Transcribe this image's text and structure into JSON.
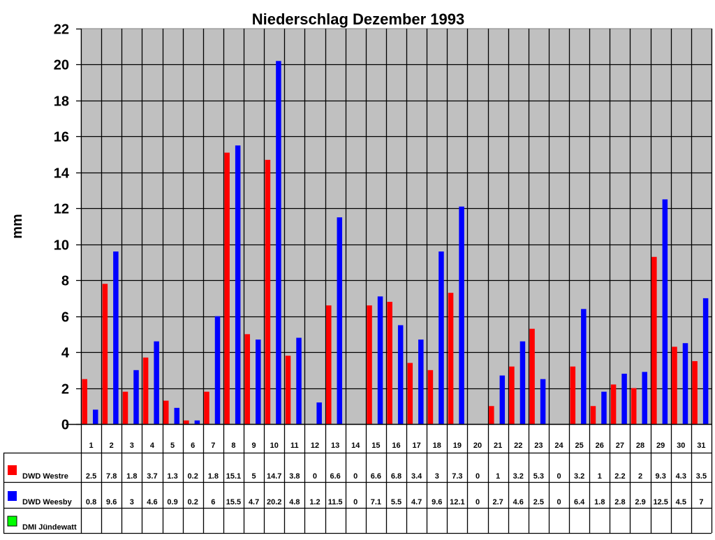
{
  "chart_data": {
    "type": "bar",
    "title": "Niederschlag Dezember 1993",
    "xlabel": "",
    "ylabel": "mm",
    "ylim": [
      0,
      22
    ],
    "yticks": [
      0,
      2,
      4,
      6,
      8,
      10,
      12,
      14,
      16,
      18,
      20,
      22
    ],
    "grid": true,
    "legend_position": "data-table-left",
    "categories": [
      "1",
      "2",
      "3",
      "4",
      "5",
      "6",
      "7",
      "8",
      "9",
      "10",
      "11",
      "12",
      "13",
      "14",
      "15",
      "16",
      "17",
      "18",
      "19",
      "20",
      "21",
      "22",
      "23",
      "24",
      "25",
      "26",
      "27",
      "28",
      "29",
      "30",
      "31"
    ],
    "series": [
      {
        "name": "DWD Westre",
        "color": "#ff0000",
        "values": [
          2.5,
          7.8,
          1.8,
          3.7,
          1.3,
          0.2,
          1.8,
          15.1,
          5,
          14.7,
          3.8,
          0,
          6.6,
          0,
          6.6,
          6.8,
          3.4,
          3,
          7.3,
          0,
          1,
          3.2,
          5.3,
          0,
          3.2,
          1,
          2.2,
          2,
          9.3,
          4.3,
          3.5
        ]
      },
      {
        "name": "DWD Weesby",
        "color": "#0000ff",
        "values": [
          0.8,
          9.6,
          3,
          4.6,
          0.9,
          0.2,
          6,
          15.5,
          4.7,
          20.2,
          4.8,
          1.2,
          11.5,
          0,
          7.1,
          5.5,
          4.7,
          9.6,
          12.1,
          0,
          2.7,
          4.6,
          2.5,
          0,
          6.4,
          1.8,
          2.8,
          2.9,
          12.5,
          4.5,
          7
        ]
      },
      {
        "name": "DMI Jündewatt",
        "color": "#00ff00",
        "values": [
          null,
          null,
          null,
          null,
          null,
          null,
          null,
          null,
          null,
          null,
          null,
          null,
          null,
          null,
          null,
          null,
          null,
          null,
          null,
          null,
          null,
          null,
          null,
          null,
          null,
          null,
          null,
          null,
          null,
          null,
          null
        ]
      }
    ],
    "colors": {
      "plot_background": "#c0c0c0",
      "gridline": "#000000",
      "page_background": "#ffffff"
    }
  }
}
